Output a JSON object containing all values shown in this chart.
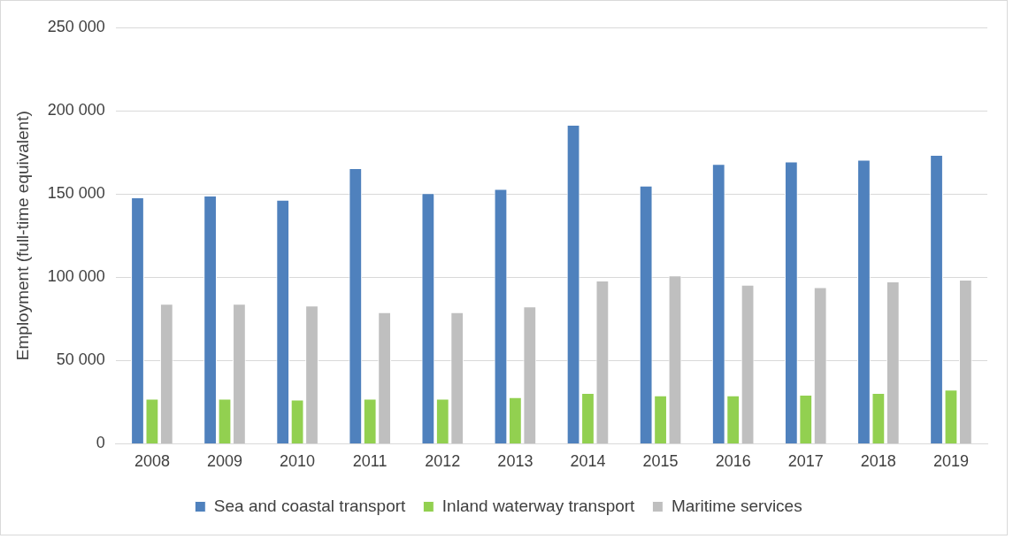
{
  "chart_data": {
    "type": "bar",
    "ylabel": "Employment (full-time equivalent)",
    "categories": [
      "2008",
      "2009",
      "2010",
      "2011",
      "2012",
      "2013",
      "2014",
      "2015",
      "2016",
      "2017",
      "2018",
      "2019"
    ],
    "series": [
      {
        "name": "Sea and coastal transport",
        "color": "#4f81bd",
        "values": [
          148000,
          149000,
          146500,
          165500,
          150500,
          153000,
          191500,
          155000,
          168000,
          169500,
          170500,
          173500
        ]
      },
      {
        "name": "Inland waterway transport",
        "color": "#92d050",
        "values": [
          27000,
          27000,
          26500,
          27000,
          27000,
          28000,
          30500,
          29000,
          29000,
          29500,
          30500,
          32500
        ]
      },
      {
        "name": "Maritime services",
        "color": "#bfbfbf",
        "values": [
          84000,
          84000,
          83000,
          79000,
          79000,
          82500,
          98000,
          101000,
          95500,
          94000,
          97500,
          98500
        ]
      }
    ],
    "ylim": [
      0,
      250000
    ],
    "yticks": [
      {
        "value": 0,
        "label": "0"
      },
      {
        "value": 50000,
        "label": "50 000"
      },
      {
        "value": 100000,
        "label": "100 000"
      },
      {
        "value": 150000,
        "label": "150 000"
      },
      {
        "value": 200000,
        "label": "200 000"
      },
      {
        "value": 250000,
        "label": "250 000"
      }
    ],
    "grid": "y",
    "legend": "bottom"
  }
}
